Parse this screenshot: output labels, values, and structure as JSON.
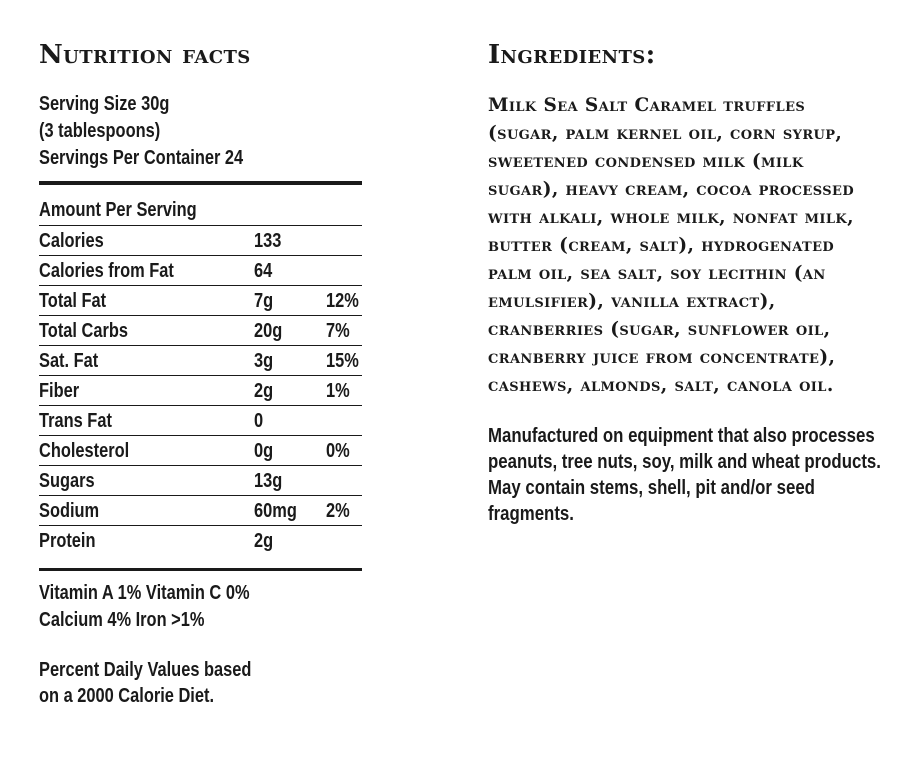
{
  "nutrition": {
    "title": "Nutrition facts",
    "serving_lines": [
      "Serving Size 30g",
      "(3 tablespoons)",
      "Servings Per Container 24"
    ],
    "amount_header": "Amount Per Serving",
    "rows": [
      {
        "name": "Calories",
        "amount": "133",
        "percent": ""
      },
      {
        "name": "Calories from Fat",
        "amount": "64",
        "percent": ""
      },
      {
        "name": "Total Fat",
        "amount": "7g",
        "percent": "12%"
      },
      {
        "name": "Total Carbs",
        "amount": "20g",
        "percent": "7%"
      },
      {
        "name": "Sat. Fat",
        "amount": "3g",
        "percent": "15%"
      },
      {
        "name": "Fiber",
        "amount": "2g",
        "percent": "1%"
      },
      {
        "name": "Trans Fat",
        "amount": "0",
        "percent": ""
      },
      {
        "name": "Cholesterol",
        "amount": "0g",
        "percent": "0%"
      },
      {
        "name": "Sugars",
        "amount": "13g",
        "percent": ""
      },
      {
        "name": "Sodium",
        "amount": "60mg",
        "percent": "2%"
      },
      {
        "name": "Protein",
        "amount": "2g",
        "percent": ""
      }
    ],
    "vitamins_line_1": "Vitamin A  1%  Vitamin C  0%",
    "vitamins_line_2": "Calcium  4%  Iron >1%",
    "footnote_line_1": "Percent Daily Values based",
    "footnote_line_2": "on a 2000 Calorie Diet."
  },
  "ingredients": {
    "title": "Ingredients:",
    "text": "Milk Sea Salt Caramel truffles (sugar, palm kernel oil, corn syrup, sweetened condensed milk (milk sugar), heavy cream, cocoa processed with alkali, whole milk, nonfat milk, butter (cream, salt), hydrogenated palm oil, sea salt, soy lecithin (an emulsifier), vanilla extract), cranberries (sugar, sunflower oil, cranberry juice from concentrate), cashews, almonds, salt, canola oil.",
    "allergen_note": "Manufactured on equipment that also processes peanuts, tree nuts, soy, milk and wheat products. May contain stems, shell, pit and/or seed fragments."
  }
}
